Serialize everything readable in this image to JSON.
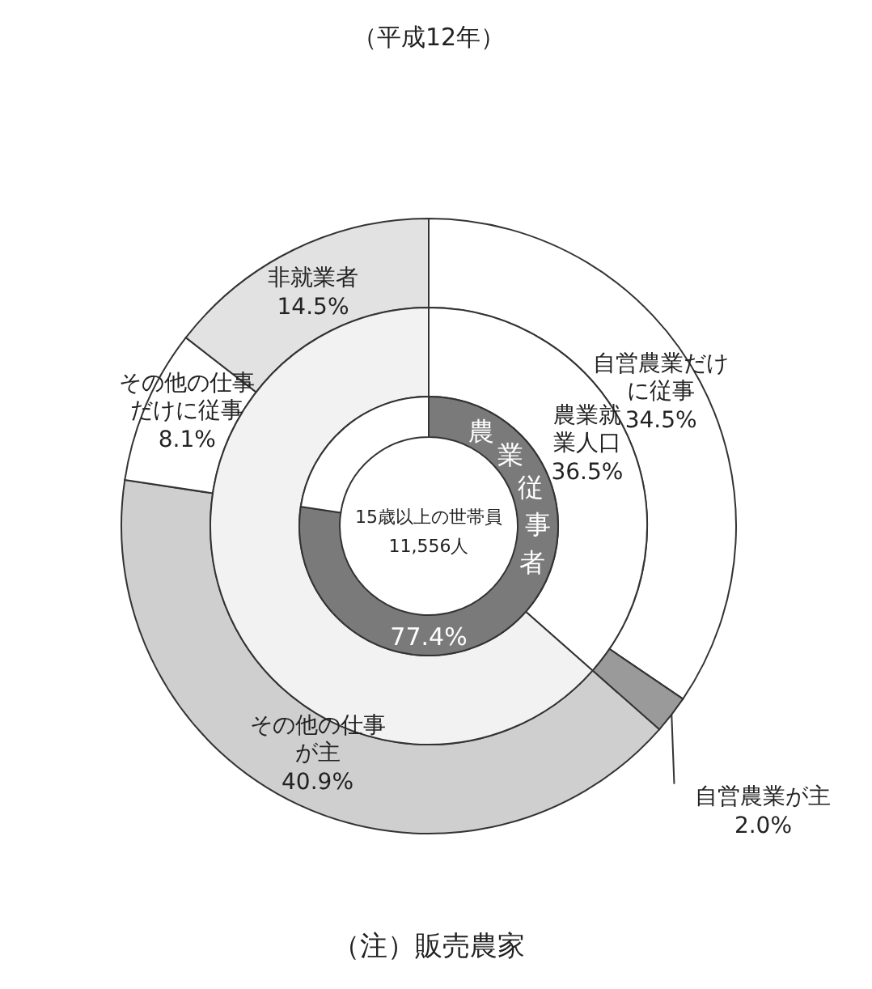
{
  "chart_data": [
    {
      "type": "donut",
      "title": "（平成12年）",
      "categories": [
        "自営農業だけに従事",
        "自営農業が主",
        "その他の仕事が主",
        "その他の仕事だけに従事",
        "非就業者"
      ],
      "values": [
        34.5,
        2.0,
        40.9,
        8.1,
        14.5
      ],
      "value_labels": [
        "34.5%",
        "2.0%",
        "40.9%",
        "8.1%",
        "14.5%"
      ],
      "colors": [
        "#ffffff",
        "#9a9a9a",
        "#cfcfcf",
        "#ffffff",
        "#e2e2e2"
      ],
      "annotations": [
        "（注）販売農家"
      ]
    },
    {
      "type": "donut",
      "categories": [
        "農業就業人口",
        null
      ],
      "values": [
        36.5,
        63.5
      ],
      "value_labels": [
        "36.5%",
        null
      ],
      "colors": [
        "#ffffff",
        "#f2f2f2"
      ]
    },
    {
      "type": "donut",
      "categories": [
        "農業従事者",
        null
      ],
      "values": [
        77.4,
        22.6
      ],
      "value_labels": [
        "77.4%",
        null
      ],
      "colors": [
        "#7a7a7a",
        "#ffffff"
      ],
      "annotations": [
        "15歳以上の世帯員",
        "11,556人"
      ]
    }
  ]
}
